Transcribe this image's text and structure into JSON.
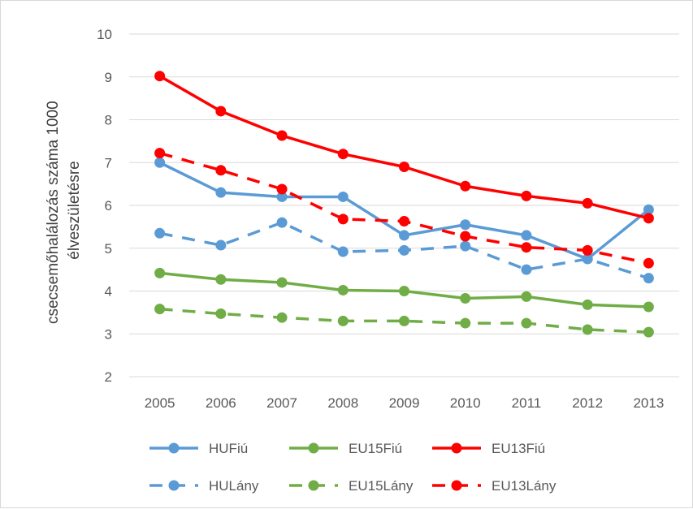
{
  "chart_data": {
    "type": "line",
    "title": "",
    "xlabel": "",
    "ylabel_lines": [
      "csecsemőhalálozás száma 1000",
      "élveszületésre"
    ],
    "ylim": [
      2,
      10
    ],
    "yticks": [
      "2",
      "3",
      "4",
      "5",
      "6",
      "7",
      "8",
      "9",
      "10"
    ],
    "categories": [
      "2005",
      "2006",
      "2007",
      "2008",
      "2009",
      "2010",
      "2011",
      "2012",
      "2013"
    ],
    "grid": true,
    "legend_position": "bottom",
    "series": [
      {
        "name": "HUFiú",
        "color": "#5b9bd5",
        "dash": false,
        "values": [
          7.0,
          6.3,
          6.2,
          6.2,
          5.3,
          5.55,
          5.3,
          4.75,
          5.9
        ]
      },
      {
        "name": "EU15Fiú",
        "color": "#70ad47",
        "dash": false,
        "values": [
          4.42,
          4.27,
          4.2,
          4.02,
          4.0,
          3.83,
          3.87,
          3.68,
          3.63
        ]
      },
      {
        "name": "EU13Fiú",
        "color": "#ff0000",
        "dash": false,
        "values": [
          9.02,
          8.2,
          7.63,
          7.2,
          6.9,
          6.45,
          6.22,
          6.05,
          5.7
        ]
      },
      {
        "name": "HULány",
        "color": "#5b9bd5",
        "dash": true,
        "values": [
          5.35,
          5.07,
          5.6,
          4.92,
          4.95,
          5.05,
          4.5,
          4.75,
          4.3
        ]
      },
      {
        "name": "EU15Lány",
        "color": "#70ad47",
        "dash": true,
        "values": [
          3.58,
          3.47,
          3.38,
          3.3,
          3.3,
          3.25,
          3.25,
          3.1,
          3.04
        ]
      },
      {
        "name": "EU13Lány",
        "color": "#ff0000",
        "dash": true,
        "values": [
          7.22,
          6.82,
          6.38,
          5.68,
          5.63,
          5.28,
          5.02,
          4.95,
          4.65
        ]
      }
    ]
  }
}
